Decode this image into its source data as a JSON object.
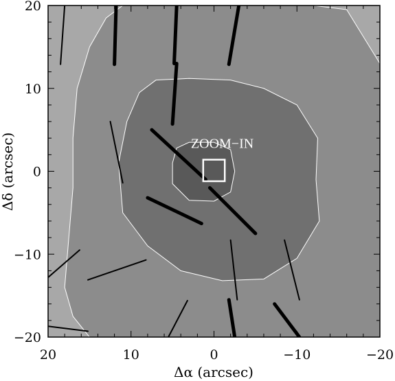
{
  "chart_data": {
    "type": "contour",
    "xlabel": "Δα (arcsec)",
    "ylabel": "Δδ (arcsec)",
    "xlim": [
      20,
      -20
    ],
    "ylim": [
      -20,
      20
    ],
    "x_reversed": true,
    "x_ticks": [
      20,
      10,
      0,
      -10,
      -20
    ],
    "y_ticks": [
      20,
      10,
      0,
      -10,
      -20
    ],
    "x_tick_labels": [
      "20",
      "10",
      "0",
      "−10",
      "−20"
    ],
    "y_tick_labels": [
      "20",
      "10",
      "0",
      "−10",
      "−20"
    ],
    "annotation": {
      "text": "ZOOM−IN",
      "x": -1,
      "y": 2.8
    },
    "zoom_box": {
      "x0": 1.3,
      "x1": -1.3,
      "y0": -1.2,
      "y1": 1.4
    },
    "contour_levels": [
      {
        "level": 1,
        "color": "#a8a8a8",
        "fill": "background"
      },
      {
        "level": 2,
        "color": "#8c8c8c",
        "points": [
          [
            11,
            20
          ],
          [
            6,
            20
          ],
          [
            0,
            20
          ],
          [
            -6,
            20
          ],
          [
            -12,
            20
          ],
          [
            -16,
            19.5
          ],
          [
            -20,
            13
          ],
          [
            -20,
            -20
          ],
          [
            15,
            -20
          ],
          [
            17,
            -17.5
          ],
          [
            18,
            -14
          ],
          [
            17.5,
            -8
          ],
          [
            17,
            -2
          ],
          [
            17,
            4
          ],
          [
            16.5,
            10
          ],
          [
            15,
            15
          ],
          [
            13,
            18.5
          ]
        ]
      },
      {
        "level": 3,
        "color": "#707070",
        "points": [
          [
            7,
            11
          ],
          [
            3,
            11.2
          ],
          [
            -2,
            11
          ],
          [
            -6,
            10
          ],
          [
            -10,
            8
          ],
          [
            -12.5,
            4
          ],
          [
            -12.3,
            -1
          ],
          [
            -12.7,
            -6
          ],
          [
            -10,
            -10.5
          ],
          [
            -6,
            -13
          ],
          [
            -1,
            -13.2
          ],
          [
            4,
            -12
          ],
          [
            8,
            -9
          ],
          [
            11,
            -5
          ],
          [
            11.5,
            1
          ],
          [
            10.5,
            6
          ],
          [
            9,
            9.5
          ]
        ]
      },
      {
        "level": 4,
        "color": "#595959",
        "points": [
          [
            3,
            3.5
          ],
          [
            0,
            3.5
          ],
          [
            -2,
            2.6
          ],
          [
            -2.5,
            0
          ],
          [
            -2,
            -2.5
          ],
          [
            0,
            -3.6
          ],
          [
            3,
            -3.5
          ],
          [
            5,
            -1.5
          ],
          [
            5,
            1
          ],
          [
            4.5,
            2.8
          ]
        ]
      }
    ],
    "vectors": [
      {
        "x1": 18.5,
        "y1": 12.9,
        "x2": 18,
        "y2": 20,
        "weight": 2
      },
      {
        "x1": 12,
        "y1": 12.9,
        "x2": 11.8,
        "y2": 20,
        "weight": 5
      },
      {
        "x1": 4.5,
        "y1": 20,
        "x2": 4.8,
        "y2": 13,
        "weight": 5
      },
      {
        "x1": -1.8,
        "y1": 12.9,
        "x2": -3,
        "y2": 20,
        "weight": 5
      },
      {
        "x1": 5,
        "y1": 5.7,
        "x2": 4.5,
        "y2": 13,
        "weight": 5
      },
      {
        "x1": 12.5,
        "y1": 6,
        "x2": 11,
        "y2": -1.4,
        "weight": 2
      },
      {
        "x1": 7.5,
        "y1": 5,
        "x2": 1,
        "y2": -1,
        "weight": 5
      },
      {
        "x1": 0.5,
        "y1": -2,
        "x2": -5,
        "y2": -7.5,
        "weight": 5
      },
      {
        "x1": 8,
        "y1": -3.2,
        "x2": 1.5,
        "y2": -6.3,
        "weight": 5
      },
      {
        "x1": -2,
        "y1": -8.3,
        "x2": -2.8,
        "y2": -15.5,
        "weight": 2
      },
      {
        "x1": -8.5,
        "y1": -8.3,
        "x2": -10.3,
        "y2": -15.5,
        "weight": 2
      },
      {
        "x1": 20,
        "y1": -12.8,
        "x2": 16.2,
        "y2": -9.5,
        "weight": 2
      },
      {
        "x1": 15.2,
        "y1": -13.1,
        "x2": 8.2,
        "y2": -10.7,
        "weight": 2
      },
      {
        "x1": 20,
        "y1": -18.7,
        "x2": 15.2,
        "y2": -19.3,
        "weight": 2
      },
      {
        "x1": 5.5,
        "y1": -20,
        "x2": 3.2,
        "y2": -15.6,
        "weight": 2
      },
      {
        "x1": -1.8,
        "y1": -15.5,
        "x2": -2.5,
        "y2": -20,
        "weight": 5
      },
      {
        "x1": -7.3,
        "y1": -16,
        "x2": -10.3,
        "y2": -20,
        "weight": 5
      }
    ]
  }
}
